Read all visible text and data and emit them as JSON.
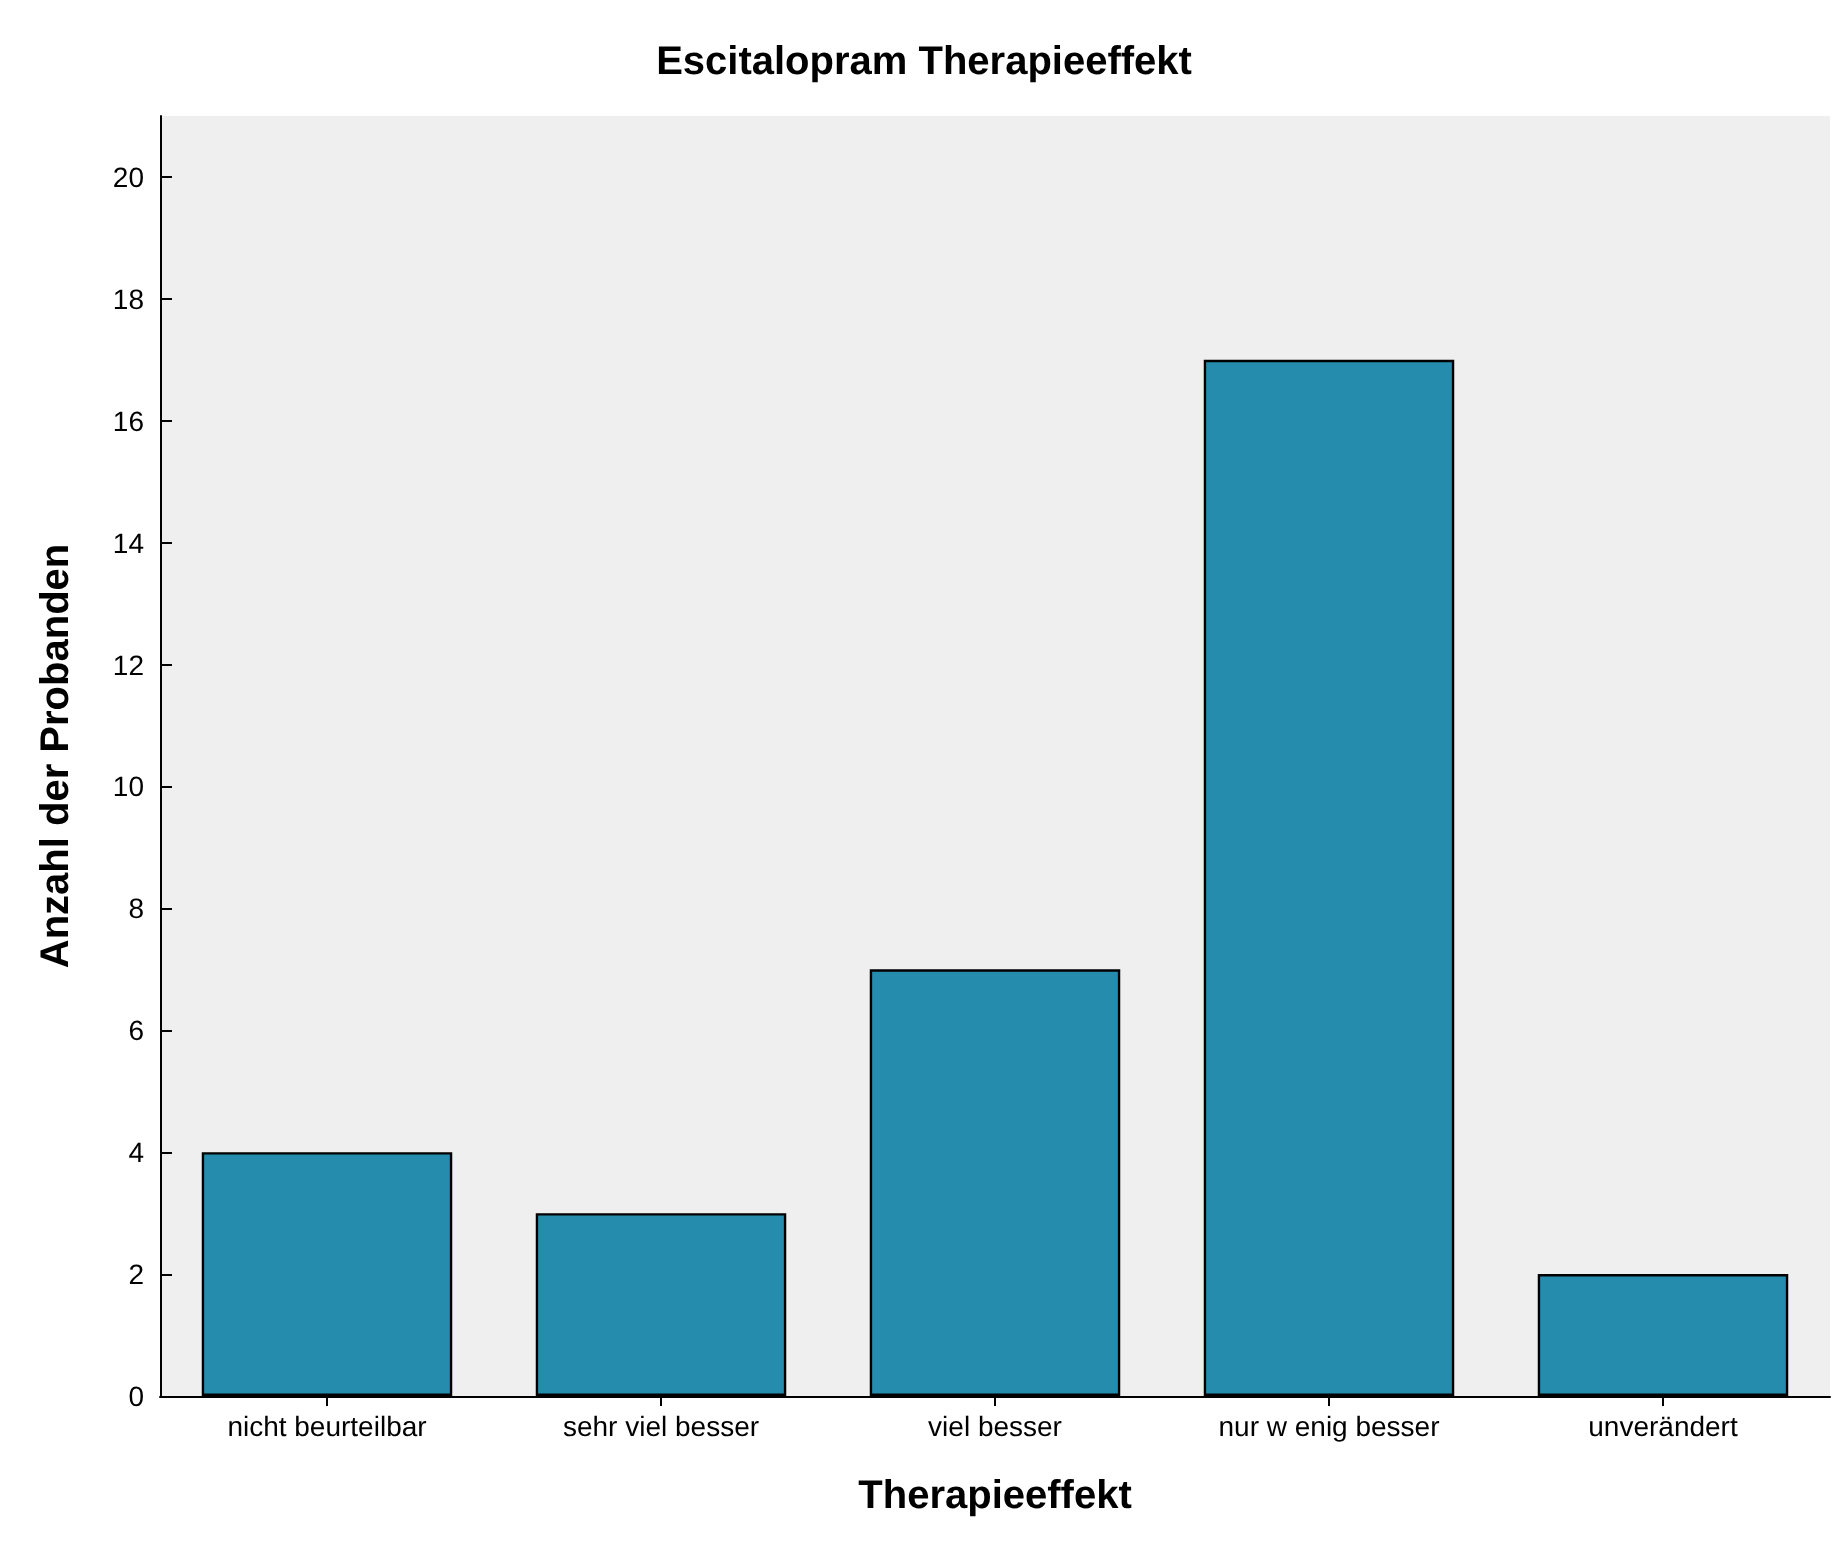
{
  "chart_data": {
    "type": "bar",
    "title": "Escitalopram Therapieeffekt",
    "xlabel": "Therapieeffekt",
    "ylabel": "Anzahl der Probanden",
    "categories": [
      "nicht beurteilbar",
      "sehr viel besser",
      "viel besser",
      "nur w enig besser",
      "unverändert"
    ],
    "values": [
      4,
      3,
      7,
      17,
      2
    ],
    "color": "#268cae",
    "ylim": [
      0,
      21
    ],
    "yticks": [
      0,
      2,
      4,
      6,
      8,
      10,
      12,
      14,
      16,
      18,
      20
    ],
    "grid": false
  }
}
